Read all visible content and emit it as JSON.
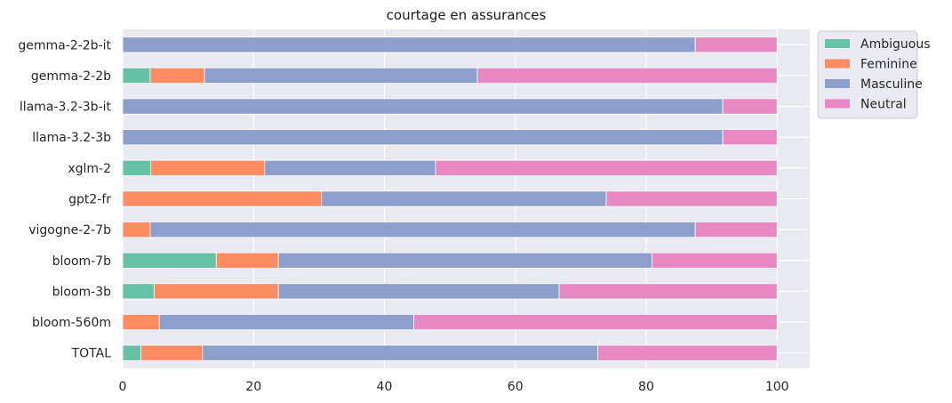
{
  "chart_data": {
    "type": "bar",
    "orientation": "horizontal",
    "stacked": true,
    "title": "courtage en assurances",
    "xlabel": "",
    "ylabel": "",
    "xlim": [
      0,
      105
    ],
    "xticks": [
      0,
      20,
      40,
      60,
      80,
      100
    ],
    "grid": true,
    "legend_position": "upper-right-outside",
    "categories": [
      "gemma-2-2b-it",
      "gemma-2-2b",
      "llama-3.2-3b-it",
      "llama-3.2-3b",
      "xglm-2",
      "gpt2-fr",
      "vigogne-2-7b",
      "bloom-7b",
      "bloom-3b",
      "bloom-560m",
      "TOTAL"
    ],
    "series": [
      {
        "name": "Ambiguous",
        "color": "#66c2a5",
        "values": [
          0,
          4.2,
          0,
          0,
          4.3,
          0,
          0,
          14.3,
          4.8,
          0,
          2.8
        ]
      },
      {
        "name": "Feminine",
        "color": "#fc8d62",
        "values": [
          0,
          8.3,
          0,
          0,
          17.4,
          30.4,
          4.2,
          9.5,
          19.0,
          5.6,
          9.4
        ]
      },
      {
        "name": "Masculine",
        "color": "#8da0cb",
        "values": [
          87.5,
          41.7,
          91.7,
          91.7,
          26.1,
          43.5,
          83.3,
          57.1,
          42.9,
          38.9,
          60.4
        ]
      },
      {
        "name": "Neutral",
        "color": "#e78ac3",
        "values": [
          12.5,
          45.8,
          8.3,
          8.3,
          52.2,
          26.1,
          12.5,
          19.1,
          33.3,
          55.5,
          27.4
        ]
      }
    ]
  }
}
